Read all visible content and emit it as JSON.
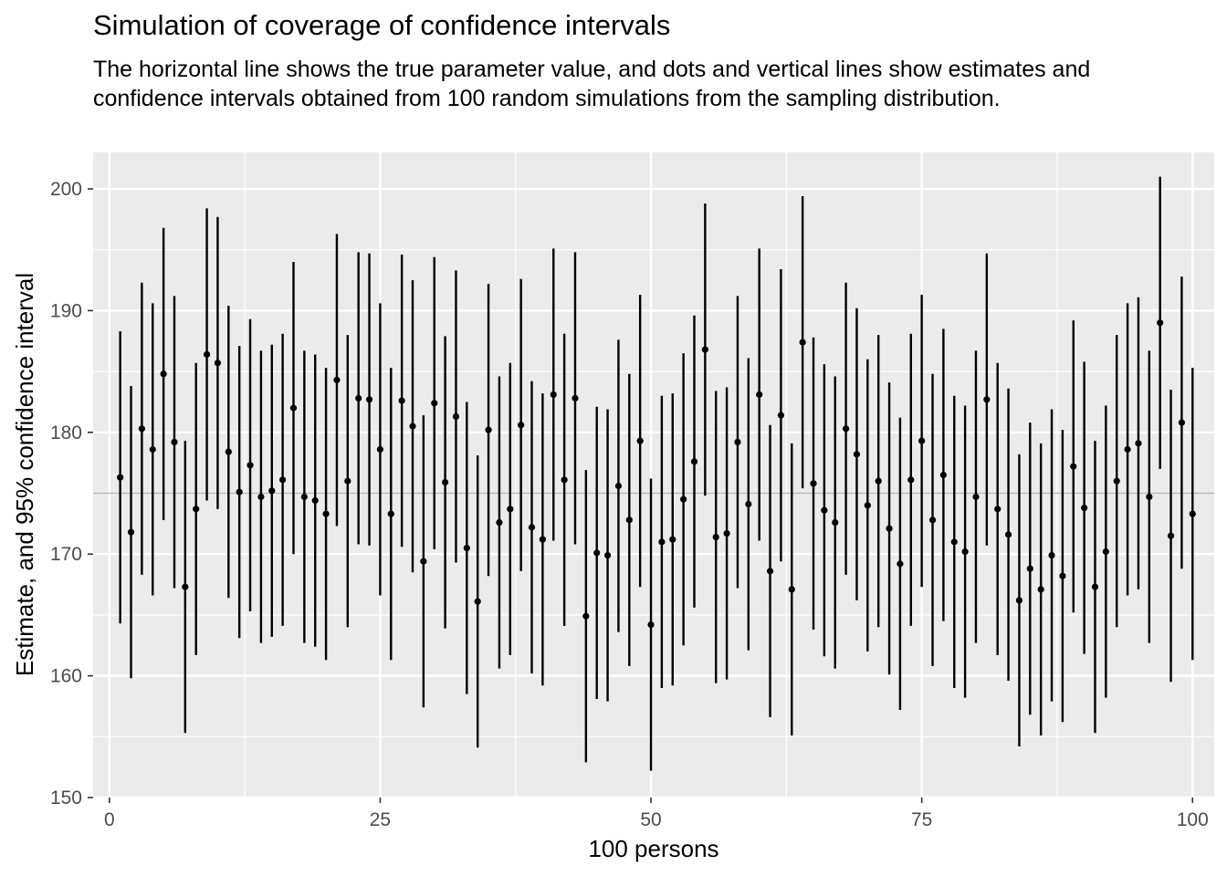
{
  "chart_data": {
    "type": "scatter",
    "title": "Simulation of coverage of confidence intervals",
    "subtitle": "The horizontal line shows the true parameter value, and dots and vertical lines show estimates and confidence intervals obtained from 100 random simulations from the sampling distribution.",
    "xlabel": "100 persons",
    "ylabel": "Estimate, and 95% confidence interval",
    "xlim": [
      -1.5,
      102
    ],
    "ylim": [
      150,
      203
    ],
    "x_ticks": [
      0,
      25,
      50,
      75,
      100
    ],
    "y_ticks": [
      150,
      160,
      170,
      180,
      190,
      200
    ],
    "true_value": 175,
    "interval_half_width": 12,
    "grid": true,
    "estimates": [
      176.3,
      171.8,
      180.3,
      178.6,
      184.8,
      179.2,
      167.3,
      173.7,
      186.4,
      185.7,
      178.4,
      175.1,
      177.3,
      174.7,
      175.2,
      176.1,
      182.0,
      174.7,
      174.4,
      173.3,
      184.3,
      176.0,
      182.8,
      182.7,
      178.6,
      173.3,
      182.6,
      180.5,
      169.4,
      182.4,
      175.9,
      181.3,
      170.5,
      166.1,
      180.2,
      172.6,
      173.7,
      180.6,
      172.2,
      171.2,
      183.1,
      176.1,
      182.8,
      164.9,
      170.1,
      169.9,
      175.6,
      172.8,
      179.3,
      164.2,
      171.0,
      171.2,
      174.5,
      177.6,
      186.8,
      171.4,
      171.7,
      179.2,
      174.1,
      183.1,
      168.6,
      181.4,
      167.1,
      187.4,
      175.8,
      173.6,
      172.6,
      180.3,
      178.2,
      174.0,
      176.0,
      172.1,
      169.2,
      176.1,
      179.3,
      172.8,
      176.5,
      171.0,
      170.2,
      174.7,
      182.7,
      173.7,
      171.6,
      166.2,
      168.8,
      167.1,
      169.9,
      168.2,
      177.2,
      173.8,
      167.3,
      170.2,
      176.0,
      178.6,
      179.1,
      174.7,
      189.0,
      171.5,
      180.8,
      173.3
    ]
  }
}
